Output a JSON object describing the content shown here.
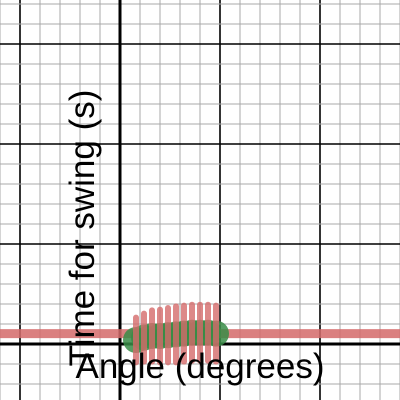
{
  "chart_data": {
    "type": "scatter",
    "title": "",
    "xlabel": "Angle (degrees)",
    "ylabel": "Time for swing (s)",
    "xlim": [
      -1.5,
      3.5
    ],
    "ylim": [
      -0.07,
      0.43
    ],
    "grid": true,
    "tick_labels": "none",
    "series": [
      {
        "kind": "points",
        "color": "#388c46",
        "error_bar_color": "#d46a6a",
        "x": [
          0.2,
          0.3,
          0.4,
          0.5,
          0.6,
          0.7,
          0.8,
          0.9,
          1.0,
          1.1,
          1.2
        ],
        "y": [
          0.005,
          0.008,
          0.01,
          0.01,
          0.011,
          0.012,
          0.013,
          0.014,
          0.014,
          0.014,
          0.013
        ],
        "error": [
          0.028,
          0.03,
          0.032,
          0.033,
          0.034,
          0.035,
          0.035,
          0.035,
          0.035,
          0.035,
          0.035
        ]
      },
      {
        "kind": "horizontal_line",
        "color": "#d46a6a",
        "y": 0.013
      }
    ]
  }
}
